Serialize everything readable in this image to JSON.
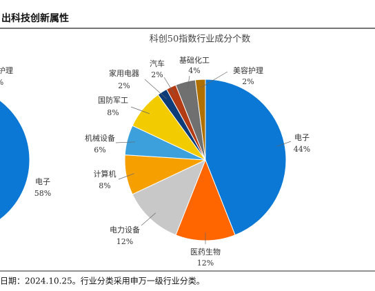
{
  "header": {
    "title": "出科技创新属性"
  },
  "chart_data": [
    {
      "type": "pie",
      "categories": [
        "护理",
        "电子"
      ],
      "values": [
        null,
        58
      ],
      "value_labels": [
        "%",
        "58%"
      ],
      "colors": [
        null,
        "#0a78d4"
      ]
    },
    {
      "type": "pie",
      "title": "科创50指数行业成分个数",
      "categories": [
        "电子",
        "医药生物",
        "电力设备",
        "计算机",
        "机械设备",
        "国防军工",
        "家用电器",
        "汽车",
        "基础化工",
        "美容护理"
      ],
      "values": [
        44,
        12,
        12,
        8,
        6,
        8,
        2,
        2,
        4,
        2
      ],
      "value_labels": [
        "44%",
        "12%",
        "12%",
        "8%",
        "6%",
        "8%",
        "2%",
        "2%",
        "4%",
        "2%"
      ],
      "colors": [
        "#0a78d4",
        "#ff6600",
        "#c8c8c8",
        "#f5a000",
        "#3ca0dc",
        "#f2cc00",
        "#0d3c78",
        "#b43c14",
        "#707070",
        "#b07000"
      ]
    }
  ],
  "footer": {
    "note": "日期：2024.10.25。行业分类采用申万一级行业分类。"
  }
}
